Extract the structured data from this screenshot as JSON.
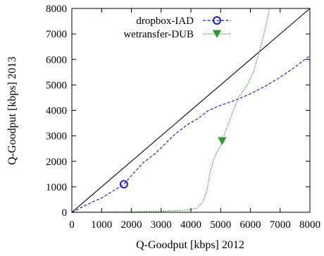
{
  "chart_data": {
    "type": "line",
    "xlabel": "Q-Goodput [kbps] 2012",
    "ylabel": "Q-Goodput [kbps] 2013",
    "xlim": [
      0,
      8000
    ],
    "ylim": [
      0,
      8000
    ],
    "xticks": [
      0,
      1000,
      2000,
      3000,
      4000,
      5000,
      6000,
      7000,
      8000
    ],
    "yticks": [
      0,
      1000,
      2000,
      3000,
      4000,
      5000,
      6000,
      7000,
      8000
    ],
    "grid": false,
    "legend_position": "top-left",
    "reference_line": {
      "x": [
        0,
        8000
      ],
      "y": [
        0,
        8000
      ],
      "color": "#000000"
    },
    "series": [
      {
        "name": "dropbox-IAD",
        "color": "#1f1fd6",
        "line_style": "dashed",
        "marker": "open-circle",
        "marker_point": [
          1750,
          1100
        ],
        "x": [
          0,
          500,
          1000,
          1400,
          1750,
          2050,
          2400,
          2800,
          3100,
          3500,
          3900,
          4200,
          4600,
          5000,
          5500,
          6000,
          6500,
          7000,
          7500,
          8000
        ],
        "y": [
          0,
          300,
          560,
          850,
          1100,
          1500,
          1950,
          2300,
          2650,
          3100,
          3450,
          3650,
          4000,
          4200,
          4400,
          4650,
          4950,
          5300,
          5700,
          6150
        ]
      },
      {
        "name": "wetransfer-DUB",
        "color": "#2a9a2a",
        "line_style": "dotted",
        "marker": "filled-triangle-down",
        "marker_point": [
          5050,
          2800
        ],
        "x": [
          0,
          1000,
          2000,
          3000,
          3800,
          4200,
          4400,
          4550,
          4650,
          4750,
          4850,
          5000,
          5050,
          5200,
          5400,
          5600,
          5900,
          6100,
          6300,
          6500,
          6640
        ],
        "y": [
          0,
          5,
          15,
          40,
          80,
          150,
          400,
          900,
          1600,
          2000,
          2300,
          2600,
          2800,
          3300,
          3900,
          4500,
          5000,
          5500,
          6300,
          7200,
          8000
        ]
      }
    ]
  }
}
